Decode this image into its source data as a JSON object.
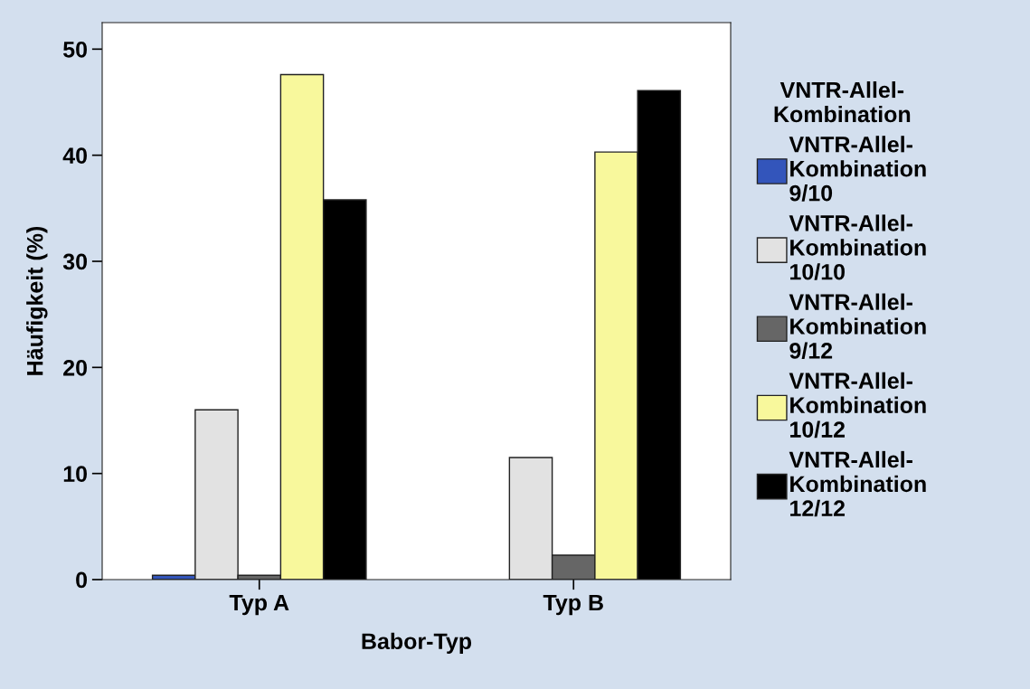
{
  "chart_data": {
    "type": "bar",
    "xlabel": "Babor-Typ",
    "ylabel": "Häufigkeit (%)",
    "legend_title": "VNTR-Allel-\nKombination",
    "categories": [
      "Typ A",
      "Typ B"
    ],
    "series": [
      {
        "name": "VNTR-Allel-\nKombination\n9/10",
        "color": "#3355bb",
        "values": [
          0.4,
          null
        ]
      },
      {
        "name": "VNTR-Allel-\nKombination\n10/10",
        "color": "#e2e2e2",
        "values": [
          16.0,
          11.5
        ]
      },
      {
        "name": "VNTR-Allel-\nKombination\n9/12",
        "color": "#666666",
        "values": [
          0.4,
          2.3
        ]
      },
      {
        "name": "VNTR-Allel-\nKombination\n10/12",
        "color": "#f8f89c",
        "values": [
          47.6,
          40.3
        ]
      },
      {
        "name": "VNTR-Allel-\nKombination\n12/12",
        "color": "#000000",
        "values": [
          35.8,
          46.1
        ]
      }
    ],
    "ylim": [
      0,
      52.5
    ],
    "yticks": [
      0,
      10,
      20,
      30,
      40,
      50
    ],
    "grid": false,
    "legend": "right"
  }
}
